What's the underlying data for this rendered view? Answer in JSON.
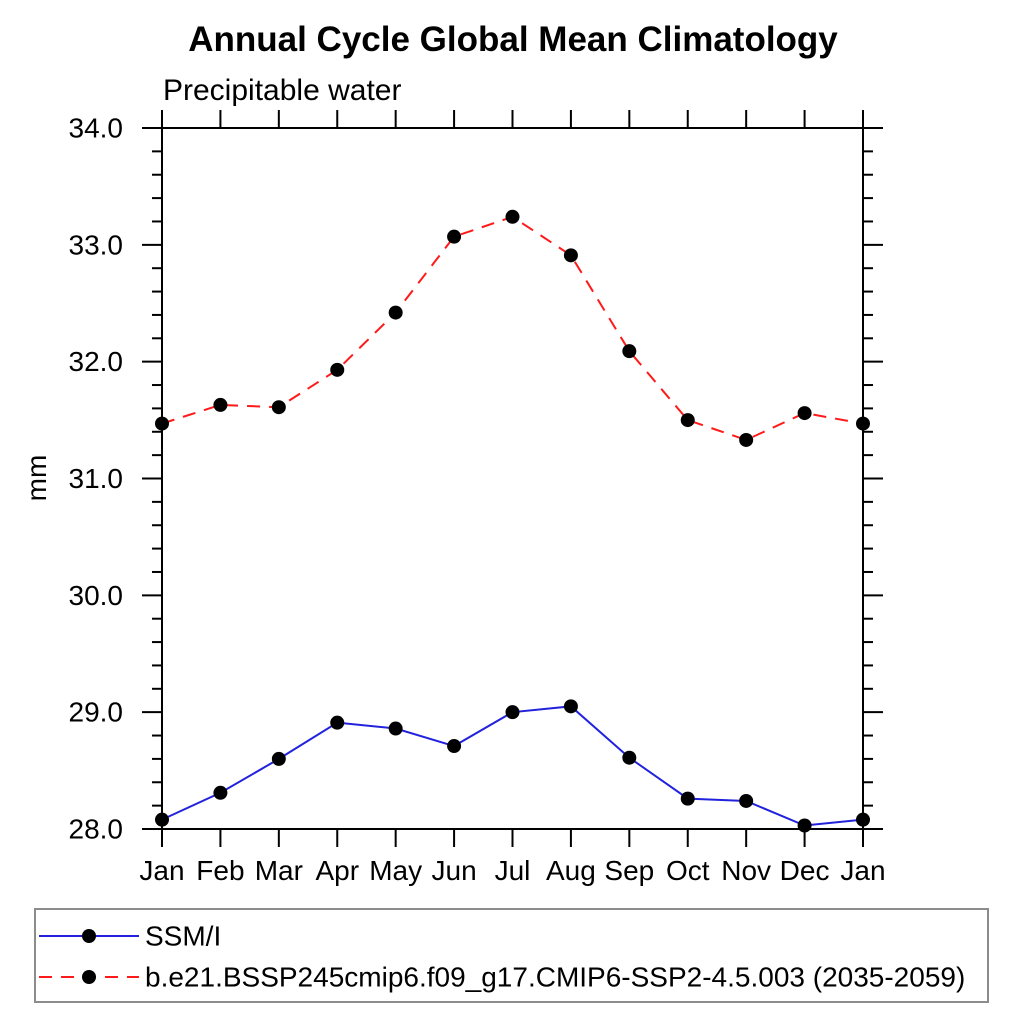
{
  "page": {
    "background": "#ffffff",
    "text_color": "#000000"
  },
  "chart_data": {
    "type": "line",
    "title": "Annual Cycle Global Mean Climatology",
    "subtitle": "Precipitable water",
    "xlabel": "",
    "ylabel": "mm",
    "categories": [
      "Jan",
      "Feb",
      "Mar",
      "Apr",
      "May",
      "Jun",
      "Jul",
      "Aug",
      "Sep",
      "Oct",
      "Nov",
      "Dec",
      "Jan"
    ],
    "ylim": [
      28.0,
      34.0
    ],
    "ytick_step": 1.0,
    "yminor_step": 0.2,
    "ytick_labels": [
      "28.0",
      "29.0",
      "30.0",
      "31.0",
      "32.0",
      "33.0",
      "34.0"
    ],
    "grid": false,
    "axis_color": "#000000",
    "marker_color": "#000000",
    "legend_position": "bottom",
    "legend_border_color": "#8c8c8c",
    "series": [
      {
        "name": "SSM/I",
        "color": "#2222dd",
        "line_style": "solid",
        "marker": "filled-circle",
        "values": [
          28.08,
          28.31,
          28.6,
          28.91,
          28.86,
          28.71,
          29.0,
          29.05,
          28.61,
          28.26,
          28.24,
          28.03,
          28.08
        ]
      },
      {
        "name": "b.e21.BSSP245cmip6.f09_g17.CMIP6-SSP2-4.5.003 (2035-2059)",
        "color": "#ff1a1a",
        "line_style": "dashed",
        "marker": "filled-circle",
        "values": [
          31.47,
          31.63,
          31.61,
          31.93,
          32.42,
          33.07,
          33.24,
          32.91,
          32.09,
          31.5,
          31.33,
          31.56,
          31.47
        ]
      }
    ]
  }
}
